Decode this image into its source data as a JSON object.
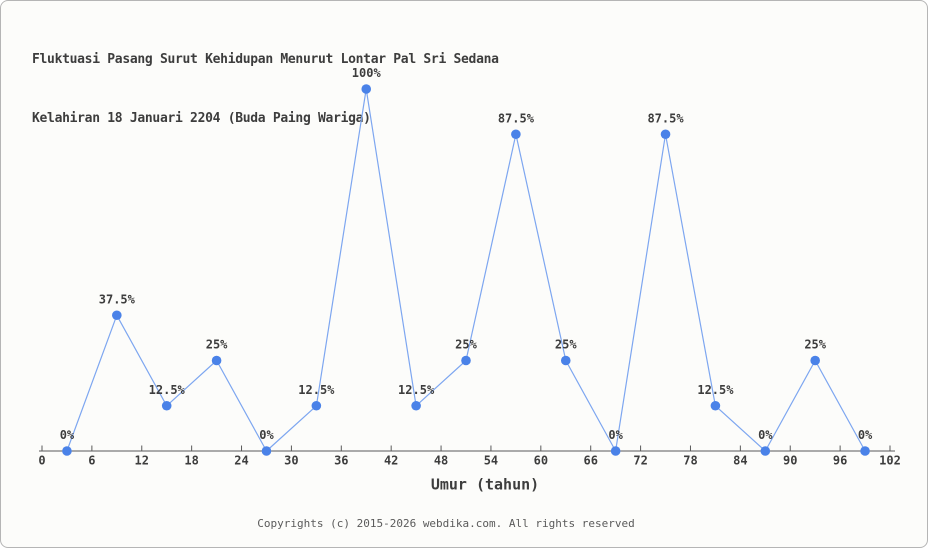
{
  "title": {
    "line1": "Fluktuasi Pasang Surut Kehidupan Menurut Lontar Pal Sri Sedana",
    "line2": "Kelahiran 18 Januari 2204 (Buda Paing Wariga)"
  },
  "footer": {
    "text": "Copyrights (c) 2015-2026 webdika.com. All rights reserved"
  },
  "chart_data": {
    "type": "line",
    "title": "Fluktuasi Pasang Surut Kehidupan Menurut Lontar Pal Sri Sedana Kelahiran 18 Januari 2204 (Buda Paing Wariga)",
    "xlabel": "Umur (tahun)",
    "ylabel": "",
    "x": [
      3,
      9,
      15,
      21,
      27,
      33,
      39,
      45,
      51,
      57,
      63,
      69,
      75,
      81,
      87,
      93,
      99
    ],
    "values": [
      0,
      37.5,
      12.5,
      25,
      0,
      12.5,
      100,
      12.5,
      25,
      87.5,
      25,
      0,
      87.5,
      12.5,
      0,
      25,
      0
    ],
    "point_labels": [
      "0%",
      "37.5%",
      "12.5%",
      "25%",
      "0%",
      "12.5%",
      "100%",
      "12.5%",
      "25%",
      "87.5%",
      "25%",
      "0%",
      "87.5%",
      "12.5%",
      "0%",
      "25%",
      "0%"
    ],
    "x_ticks": [
      0,
      6,
      12,
      18,
      24,
      30,
      36,
      42,
      48,
      54,
      60,
      66,
      72,
      78,
      84,
      90,
      96,
      102
    ],
    "xlim": [
      0,
      102
    ],
    "ylim": [
      0,
      100
    ],
    "grid": false,
    "legend": null,
    "colors": {
      "marker": "#4a82e8",
      "line": "#7da6f0",
      "label_text": "#3d3d3d",
      "axis": "#595959",
      "tick_text": "#3d3d3d",
      "footer_text": "#5a5a5a",
      "background": "#fcfcfa",
      "border": "#b5b5b5"
    }
  }
}
